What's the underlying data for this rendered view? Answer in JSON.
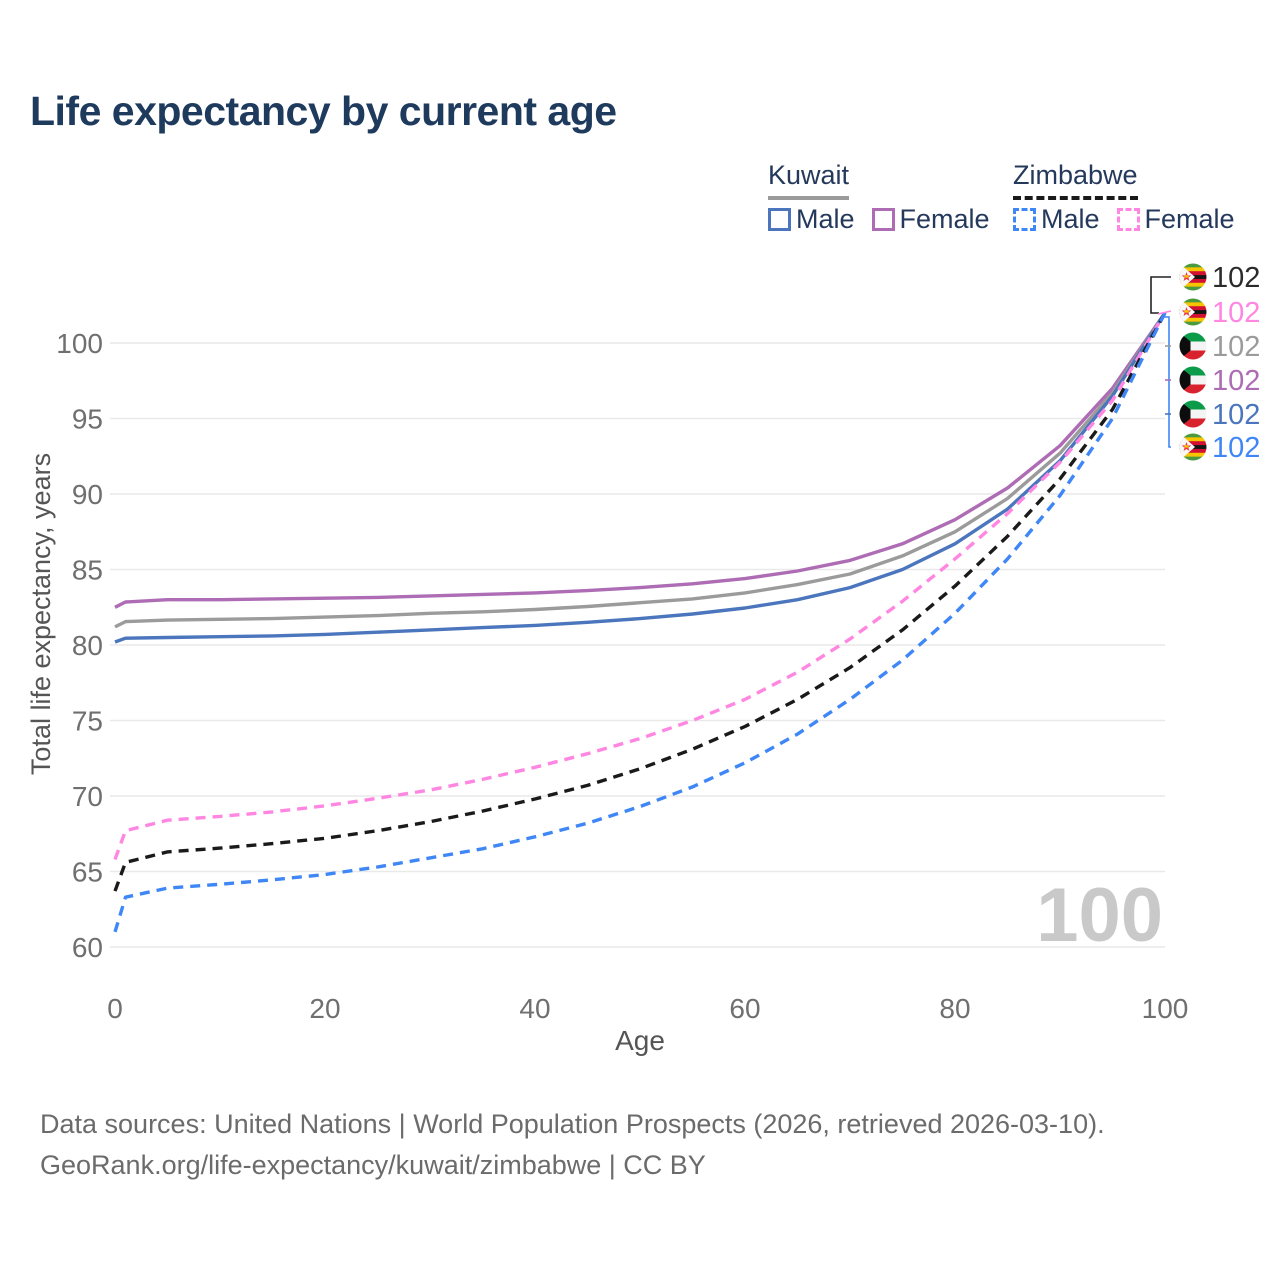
{
  "title": "Life expectancy by current age",
  "legend": {
    "groups": [
      {
        "country": "Kuwait",
        "line_style": "solid",
        "line_color": "#9b9b9b",
        "items": [
          {
            "label": "Male",
            "color": "#4b76bd"
          },
          {
            "label": "Female",
            "color": "#ad6cb4"
          }
        ]
      },
      {
        "country": "Zimbabwe",
        "line_style": "dashed",
        "line_color": "#1a1a1a",
        "items": [
          {
            "label": "Male",
            "color": "#3f87f6"
          },
          {
            "label": "Female",
            "color": "#ff86e1"
          }
        ]
      }
    ]
  },
  "chart_data": {
    "type": "line",
    "title": "Life expectancy by current age",
    "xlabel": "Age",
    "ylabel": "Total life expectancy, years",
    "xlim": [
      0,
      100
    ],
    "ylim": [
      58.5,
      103
    ],
    "xticks": [
      0,
      20,
      40,
      60,
      80,
      100
    ],
    "yticks": [
      60,
      65,
      70,
      75,
      80,
      85,
      90,
      95,
      100
    ],
    "grid": "horizontal-only",
    "legend_position": "top-right",
    "x": [
      0,
      1,
      5,
      10,
      15,
      20,
      25,
      30,
      35,
      40,
      45,
      50,
      55,
      60,
      65,
      70,
      75,
      80,
      85,
      90,
      95,
      100
    ],
    "series": [
      {
        "name": "Kuwait Female",
        "country": "Kuwait",
        "sex": "Female",
        "color": "#ad6cb4",
        "dash": false,
        "values": [
          82.5,
          82.85,
          83.0,
          83.0,
          83.05,
          83.1,
          83.15,
          83.25,
          83.35,
          83.45,
          83.6,
          83.8,
          84.05,
          84.4,
          84.9,
          85.6,
          86.7,
          88.3,
          90.4,
          93.2,
          97.0,
          102
        ]
      },
      {
        "name": "Kuwait",
        "country": "Kuwait",
        "sex": "Both",
        "color": "#9b9b9b",
        "dash": false,
        "values": [
          81.2,
          81.55,
          81.65,
          81.7,
          81.75,
          81.85,
          81.95,
          82.1,
          82.2,
          82.35,
          82.55,
          82.8,
          83.05,
          83.45,
          84.0,
          84.7,
          85.9,
          87.5,
          89.7,
          92.7,
          96.7,
          102
        ]
      },
      {
        "name": "Kuwait Male",
        "country": "Kuwait",
        "sex": "Male",
        "color": "#4b76bd",
        "dash": false,
        "values": [
          80.2,
          80.45,
          80.5,
          80.55,
          80.6,
          80.7,
          80.85,
          81.0,
          81.15,
          81.3,
          81.5,
          81.75,
          82.05,
          82.45,
          83.0,
          83.8,
          85.0,
          86.7,
          89.0,
          92.2,
          96.5,
          102
        ]
      },
      {
        "name": "Zimbabwe Female",
        "country": "Zimbabwe",
        "sex": "Female",
        "color": "#ff86e1",
        "dash": true,
        "values": [
          65.8,
          67.7,
          68.4,
          68.65,
          68.95,
          69.35,
          69.85,
          70.4,
          71.1,
          71.9,
          72.8,
          73.8,
          75.0,
          76.4,
          78.2,
          80.4,
          82.9,
          85.7,
          88.7,
          92.1,
          96.2,
          102
        ]
      },
      {
        "name": "Zimbabwe",
        "country": "Zimbabwe",
        "sex": "Both",
        "color": "#1a1a1a",
        "dash": true,
        "values": [
          63.7,
          65.6,
          66.3,
          66.55,
          66.85,
          67.2,
          67.7,
          68.3,
          69.0,
          69.8,
          70.7,
          71.8,
          73.1,
          74.6,
          76.4,
          78.5,
          81.0,
          83.9,
          87.2,
          91.0,
          95.6,
          102
        ]
      },
      {
        "name": "Zimbabwe Male",
        "country": "Zimbabwe",
        "sex": "Male",
        "color": "#3f87f6",
        "dash": true,
        "values": [
          61.0,
          63.3,
          63.9,
          64.15,
          64.45,
          64.8,
          65.3,
          65.9,
          66.5,
          67.3,
          68.2,
          69.3,
          70.6,
          72.2,
          74.1,
          76.4,
          79.0,
          82.1,
          85.7,
          89.9,
          95.0,
          102
        ]
      }
    ],
    "end_labels": [
      {
        "value": "102",
        "flag": "zimbabwe",
        "series": "Zimbabwe",
        "color": "#2b2b2b"
      },
      {
        "value": "102",
        "flag": "zimbabwe",
        "series": "Zimbabwe Female",
        "color": "#ff86e1"
      },
      {
        "value": "102",
        "flag": "kuwait",
        "series": "Kuwait",
        "color": "#9b9b9b"
      },
      {
        "value": "102",
        "flag": "kuwait",
        "series": "Kuwait Female",
        "color": "#ad6cb4"
      },
      {
        "value": "102",
        "flag": "kuwait",
        "series": "Kuwait Male",
        "color": "#4b76bd"
      },
      {
        "value": "102",
        "flag": "zimbabwe",
        "series": "Zimbabwe Male",
        "color": "#3f87f6"
      }
    ],
    "hover_age_watermark": "100"
  },
  "footer": {
    "line1": "Data sources: United Nations | World Population Prospects (2026, retrieved 2026-03-10).",
    "line2": "GeoRank.org/life-expectancy/kuwait/zimbabwe | CC BY"
  }
}
